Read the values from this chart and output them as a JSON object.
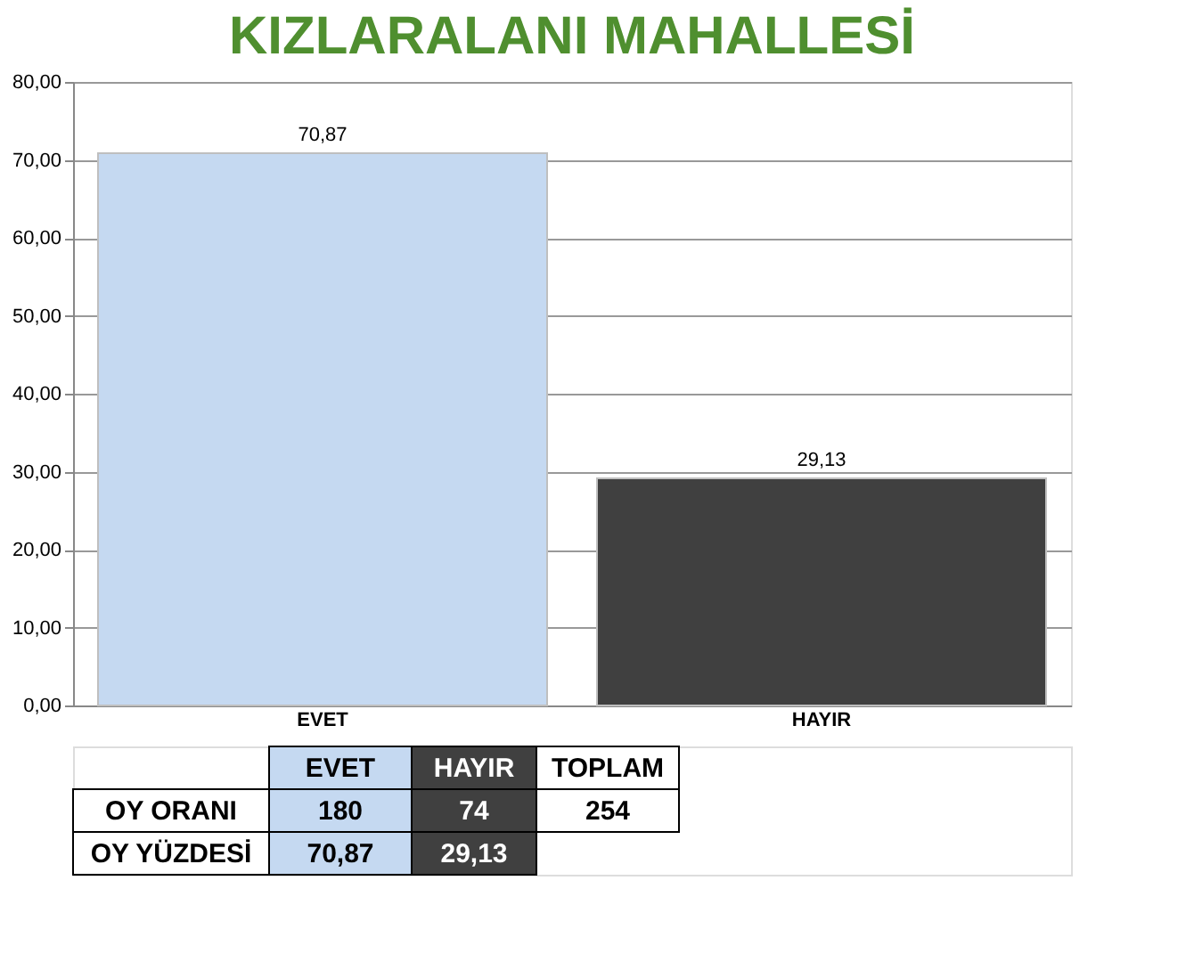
{
  "chart_data": {
    "type": "bar",
    "title": "KIZLARALANI MAHALLESİ",
    "categories": [
      "EVET",
      "HAYIR"
    ],
    "values": [
      70.87,
      29.13
    ],
    "colors": [
      "#c5d9f1",
      "#404040"
    ],
    "value_labels": [
      "70,87",
      "29,13"
    ],
    "ylim": [
      0,
      80
    ],
    "yticks": [
      {
        "value": 0,
        "label": "0,00"
      },
      {
        "value": 10,
        "label": "10,00"
      },
      {
        "value": 20,
        "label": "20,00"
      },
      {
        "value": 30,
        "label": "30,00"
      },
      {
        "value": 40,
        "label": "40,00"
      },
      {
        "value": 50,
        "label": "50,00"
      },
      {
        "value": 60,
        "label": "60,00"
      },
      {
        "value": 70,
        "label": "70,00"
      },
      {
        "value": 80,
        "label": "80,00"
      }
    ],
    "grid": "y",
    "annotations": [
      "EVET",
      "HAYIR",
      "TOPLAM",
      "OY ORANI",
      "180",
      "74",
      "254",
      "OY YÜZDESİ",
      "70,87",
      "29,13"
    ]
  }
}
